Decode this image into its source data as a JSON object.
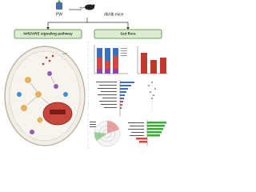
{
  "header": {
    "treatment": "PW",
    "model": "db/db mice"
  },
  "panels": [
    {
      "title": "Nrf2/ARE signaling pathway"
    },
    {
      "title": "Gut flora"
    }
  ]
}
